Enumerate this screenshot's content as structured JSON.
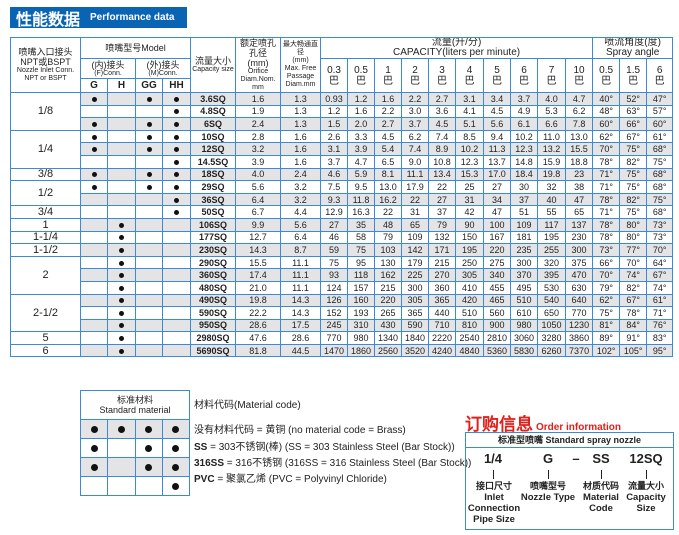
{
  "title": {
    "cn": "性能数据",
    "en": "Performance data"
  },
  "header": {
    "pipe": {
      "cn": "喷嘴入口接头",
      "cn2": "NPT或BSPT",
      "en": "Nozzle Inlet Conn.",
      "en2": "NPT or BSPT"
    },
    "model": "喷嘴型号Model",
    "female": {
      "cn": "(内)接头",
      "en": "(F)Conn."
    },
    "male": {
      "cn": "(外)接头",
      "en": "(M)Conn."
    },
    "types": [
      "G",
      "H",
      "GG",
      "HH"
    ],
    "capacity_size": {
      "cn": "流量大小",
      "en": "Capacity size"
    },
    "orifice": {
      "cn": "额定喷孔孔径",
      "unit": "(mm)",
      "en": "Orifice Diam.Nom. mm"
    },
    "passage": {
      "cn": "最大畅通直径",
      "unit": "(mm)",
      "en": "Max. Free Passage Diam.mm"
    },
    "capacity": {
      "cn": "流量(升/分)",
      "en": "CAPACITY(liters per minute)"
    },
    "angle": {
      "cn": "喷流角度(度)",
      "en": "Spray angle"
    },
    "bar_unit": "巴",
    "pressures": [
      "0.3",
      "0.5",
      "1",
      "2",
      "3",
      "4",
      "5",
      "6",
      "7",
      "10"
    ],
    "angle_pressures": [
      "0.5",
      "1.5",
      "6"
    ]
  },
  "groups": [
    {
      "size": "1/8",
      "rows": [
        {
          "dots": [
            1,
            0,
            1,
            1
          ],
          "model": "3.6SQ",
          "orifice": "1.6",
          "passage": "1.3",
          "capacity": [
            "0.93",
            "1.2",
            "1.6",
            "2.2",
            "2.7",
            "3.1",
            "3.4",
            "3.7",
            "4.0",
            "4.7"
          ],
          "angle": [
            "40°",
            "52°",
            "47°"
          ]
        },
        {
          "dots": [
            0,
            0,
            0,
            1
          ],
          "model": "4.8SQ",
          "orifice": "1.9",
          "passage": "1.3",
          "capacity": [
            "1.2",
            "1.6",
            "2.2",
            "3.0",
            "3.6",
            "4.1",
            "4.5",
            "4.9",
            "5.3",
            "6.2"
          ],
          "angle": [
            "48°",
            "63°",
            "57°"
          ]
        },
        {
          "dots": [
            1,
            0,
            1,
            1
          ],
          "model": "6SQ",
          "orifice": "2.4",
          "passage": "1.3",
          "capacity": [
            "1.5",
            "2.0",
            "2.7",
            "3.7",
            "4.5",
            "5.1",
            "5.6",
            "6.1",
            "6.6",
            "7.8"
          ],
          "angle": [
            "60°",
            "66°",
            "60°"
          ]
        }
      ]
    },
    {
      "size": "1/4",
      "rows": [
        {
          "dots": [
            1,
            0,
            1,
            1
          ],
          "model": "10SQ",
          "orifice": "2.8",
          "passage": "1.6",
          "capacity": [
            "2.6",
            "3.3",
            "4.5",
            "6.2",
            "7.4",
            "8.5",
            "9.4",
            "10.2",
            "11.0",
            "13.0"
          ],
          "angle": [
            "62°",
            "67°",
            "61°"
          ]
        },
        {
          "dots": [
            1,
            0,
            1,
            1
          ],
          "model": "12SQ",
          "orifice": "3.2",
          "passage": "1.6",
          "capacity": [
            "3.1",
            "3.9",
            "5.4",
            "7.4",
            "8.9",
            "10.2",
            "11.3",
            "12.3",
            "13.2",
            "15.5"
          ],
          "angle": [
            "70°",
            "75°",
            "68°"
          ]
        },
        {
          "dots": [
            0,
            0,
            0,
            1
          ],
          "model": "14.5SQ",
          "orifice": "3.9",
          "passage": "1.6",
          "capacity": [
            "3.7",
            "4.7",
            "6.5",
            "9.0",
            "10.8",
            "12.3",
            "13.7",
            "14.8",
            "15.9",
            "18.8"
          ],
          "angle": [
            "78°",
            "82°",
            "75°"
          ]
        }
      ]
    },
    {
      "size": "3/8",
      "rows": [
        {
          "dots": [
            1,
            0,
            1,
            1
          ],
          "model": "18SQ",
          "orifice": "4.0",
          "passage": "2.4",
          "capacity": [
            "4.6",
            "5.9",
            "8.1",
            "11.1",
            "13.4",
            "15.3",
            "17.0",
            "18.4",
            "19.8",
            "23"
          ],
          "angle": [
            "71°",
            "75°",
            "68°"
          ]
        }
      ]
    },
    {
      "size": "1/2",
      "rows": [
        {
          "dots": [
            1,
            0,
            1,
            1
          ],
          "model": "29SQ",
          "orifice": "5.6",
          "passage": "3.2",
          "capacity": [
            "7.5",
            "9.5",
            "13.0",
            "17.9",
            "22",
            "25",
            "27",
            "30",
            "32",
            "38"
          ],
          "angle": [
            "71°",
            "75°",
            "68°"
          ]
        },
        {
          "dots": [
            0,
            0,
            0,
            1
          ],
          "model": "36SQ",
          "orifice": "6.4",
          "passage": "3.2",
          "capacity": [
            "9.3",
            "11.8",
            "16.2",
            "22",
            "27",
            "31",
            "34",
            "37",
            "40",
            "47"
          ],
          "angle": [
            "78°",
            "82°",
            "75°"
          ]
        }
      ]
    },
    {
      "size": "3/4",
      "rows": [
        {
          "dots": [
            0,
            0,
            0,
            1
          ],
          "model": "50SQ",
          "orifice": "6.7",
          "passage": "4.4",
          "capacity": [
            "12.9",
            "16.3",
            "22",
            "31",
            "37",
            "42",
            "47",
            "51",
            "55",
            "65"
          ],
          "angle": [
            "71°",
            "75°",
            "68°"
          ]
        }
      ]
    },
    {
      "size": "1",
      "rows": [
        {
          "dots": [
            0,
            1,
            0,
            0
          ],
          "model": "106SQ",
          "orifice": "9.9",
          "passage": "5.6",
          "capacity": [
            "27",
            "35",
            "48",
            "65",
            "79",
            "90",
            "100",
            "109",
            "117",
            "137"
          ],
          "angle": [
            "78°",
            "80°",
            "73°"
          ]
        }
      ]
    },
    {
      "size": "1-1/4",
      "rows": [
        {
          "dots": [
            0,
            1,
            0,
            0
          ],
          "model": "177SQ",
          "orifice": "12.7",
          "passage": "6.4",
          "capacity": [
            "46",
            "58",
            "79",
            "109",
            "132",
            "150",
            "167",
            "181",
            "195",
            "230"
          ],
          "angle": [
            "78°",
            "80°",
            "73°"
          ]
        }
      ]
    },
    {
      "size": "1-1/2",
      "rows": [
        {
          "dots": [
            0,
            1,
            0,
            0
          ],
          "model": "230SQ",
          "orifice": "14.3",
          "passage": "8.7",
          "capacity": [
            "59",
            "75",
            "103",
            "142",
            "171",
            "195",
            "220",
            "235",
            "255",
            "300"
          ],
          "angle": [
            "73°",
            "77°",
            "70°"
          ]
        }
      ]
    },
    {
      "size": "2",
      "rows": [
        {
          "dots": [
            0,
            1,
            0,
            0
          ],
          "model": "290SQ",
          "orifice": "15.5",
          "passage": "11.1",
          "capacity": [
            "75",
            "95",
            "130",
            "179",
            "215",
            "250",
            "275",
            "300",
            "320",
            "375"
          ],
          "angle": [
            "66°",
            "70°",
            "64°"
          ]
        },
        {
          "dots": [
            0,
            1,
            0,
            0
          ],
          "model": "360SQ",
          "orifice": "17.4",
          "passage": "11.1",
          "capacity": [
            "93",
            "118",
            "162",
            "225",
            "270",
            "305",
            "340",
            "370",
            "395",
            "470"
          ],
          "angle": [
            "70°",
            "74°",
            "67°"
          ]
        },
        {
          "dots": [
            0,
            1,
            0,
            0
          ],
          "model": "480SQ",
          "orifice": "21.0",
          "passage": "11.1",
          "capacity": [
            "124",
            "157",
            "215",
            "300",
            "360",
            "410",
            "455",
            "495",
            "530",
            "630"
          ],
          "angle": [
            "79°",
            "82°",
            "74°"
          ]
        }
      ]
    },
    {
      "size": "2-1/2",
      "rows": [
        {
          "dots": [
            0,
            1,
            0,
            0
          ],
          "model": "490SQ",
          "orifice": "19.8",
          "passage": "14.3",
          "capacity": [
            "126",
            "160",
            "220",
            "305",
            "365",
            "420",
            "465",
            "510",
            "540",
            "640"
          ],
          "angle": [
            "62°",
            "67°",
            "61°"
          ]
        },
        {
          "dots": [
            0,
            1,
            0,
            0
          ],
          "model": "590SQ",
          "orifice": "22.2",
          "passage": "14.3",
          "capacity": [
            "152",
            "193",
            "265",
            "365",
            "440",
            "510",
            "560",
            "610",
            "650",
            "770"
          ],
          "angle": [
            "75°",
            "78°",
            "71°"
          ]
        },
        {
          "dots": [
            0,
            1,
            0,
            0
          ],
          "model": "950SQ",
          "orifice": "28.6",
          "passage": "17.5",
          "capacity": [
            "245",
            "310",
            "430",
            "590",
            "710",
            "810",
            "900",
            "980",
            "1050",
            "1230"
          ],
          "angle": [
            "81°",
            "84°",
            "76°"
          ]
        }
      ]
    },
    {
      "size": "5",
      "rows": [
        {
          "dots": [
            0,
            1,
            0,
            0
          ],
          "model": "2980SQ",
          "orifice": "47.6",
          "passage": "28.6",
          "capacity": [
            "770",
            "980",
            "1340",
            "1840",
            "2220",
            "2540",
            "2810",
            "3060",
            "3280",
            "3860"
          ],
          "angle": [
            "89°",
            "91°",
            "83°"
          ]
        }
      ]
    },
    {
      "size": "6",
      "rows": [
        {
          "dots": [
            0,
            1,
            0,
            0
          ],
          "model": "5690SQ",
          "orifice": "81.8",
          "passage": "44.5",
          "capacity": [
            "1470",
            "1860",
            "2560",
            "3520",
            "4240",
            "4840",
            "5360",
            "5830",
            "6260",
            "7370"
          ],
          "angle": [
            "102°",
            "105°",
            "95°"
          ]
        }
      ]
    }
  ],
  "material": {
    "header_cn": "标准材料",
    "header_en": "Standard material",
    "rows": [
      [
        1,
        1,
        1,
        1
      ],
      [
        1,
        0,
        1,
        1
      ],
      [
        1,
        0,
        1,
        1
      ],
      [
        0,
        0,
        0,
        1
      ]
    ],
    "title": "材料代码(Material code)",
    "codes": [
      {
        "code": "",
        "text": "没有材料代码 = 黄铜  (no material code = Brass)"
      },
      {
        "code": "SS",
        "text": " = 303不锈钢(棒)  (SS = 303 Stainless Steel (Bar Stock))"
      },
      {
        "code": "316SS",
        "text": " = 316不锈钢 (316SS = 316 Stainless Steel (Bar Stock))"
      },
      {
        "code": "PVC",
        "text": " = 聚氯乙烯 (PVC = Polyvinyl Chloride)"
      }
    ]
  },
  "order": {
    "title_cn": "订购信息",
    "title_en": "Order information",
    "box_title": "标准型喷嘴 Standard spray nozzle",
    "codes": [
      "1/4",
      "G",
      "–",
      "SS",
      "12SQ"
    ],
    "labels": [
      {
        "cn": "接口尺寸",
        "en": "Inlet Connection Pipe Size"
      },
      {
        "cn": "喷嘴型号",
        "en": "Nozzle Type"
      },
      {
        "cn": "材质代码",
        "en": "Material Code"
      },
      {
        "cn": "流量大小",
        "en": "Capacity Size"
      }
    ]
  },
  "colors": {
    "brand_blue": "#0a64b4",
    "border": "#3a8ad4",
    "shade": "#e4e4e6",
    "order_red": "#e0201a"
  }
}
